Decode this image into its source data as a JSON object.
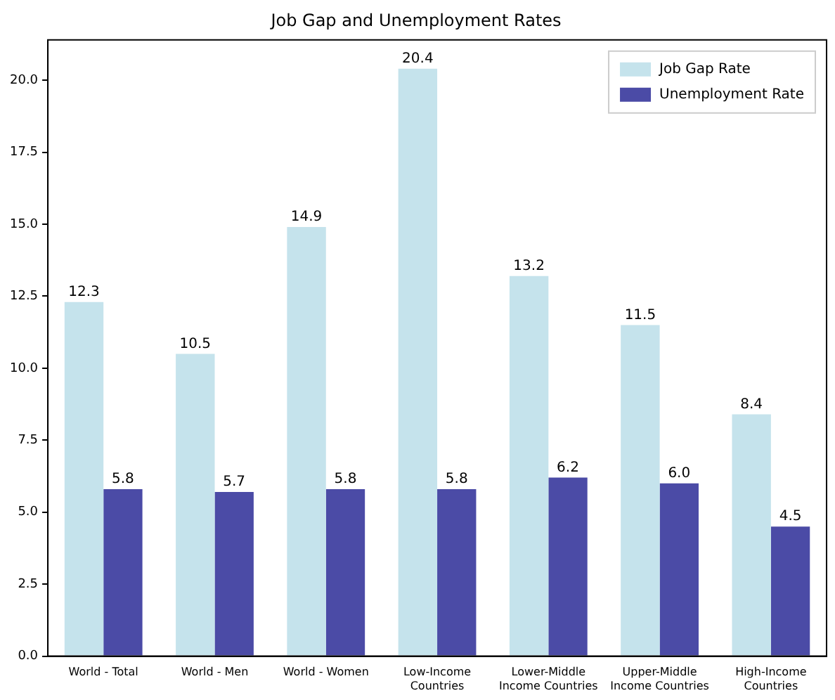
{
  "chart_data": {
    "type": "bar",
    "title": "Job Gap and Unemployment Rates",
    "categories": [
      "World - Total",
      "World - Men",
      "World - Women",
      "Low-Income\nCountries",
      "Lower-Middle\nIncome Countries",
      "Upper-Middle\nIncome Countries",
      "High-Income\nCountries"
    ],
    "series": [
      {
        "name": "Job Gap Rate",
        "color": "#c5e3ec",
        "values": [
          12.3,
          10.5,
          14.9,
          20.4,
          13.2,
          11.5,
          8.4
        ],
        "value_labels": [
          "12.3",
          "10.5",
          "14.9",
          "20.4",
          "13.2",
          "11.5",
          "8.4"
        ]
      },
      {
        "name": "Unemployment Rate",
        "color": "#4b4ba6",
        "values": [
          5.8,
          5.7,
          5.8,
          5.8,
          6.2,
          6.0,
          4.5
        ],
        "value_labels": [
          "5.8",
          "5.7",
          "5.8",
          "5.8",
          "6.2",
          "6.0",
          "4.5"
        ]
      }
    ],
    "ylim": [
      0,
      21.4
    ],
    "yticks": [
      {
        "value": 0,
        "label": "0.0"
      },
      {
        "value": 2.5,
        "label": "2.5"
      },
      {
        "value": 5,
        "label": "5.0"
      },
      {
        "value": 7.5,
        "label": "7.5"
      },
      {
        "value": 10,
        "label": "10.0"
      },
      {
        "value": 12.5,
        "label": "12.5"
      },
      {
        "value": 15,
        "label": "15.0"
      },
      {
        "value": 17.5,
        "label": "17.5"
      },
      {
        "value": 20,
        "label": "20.0"
      }
    ],
    "legend": "top right",
    "grid": false
  }
}
